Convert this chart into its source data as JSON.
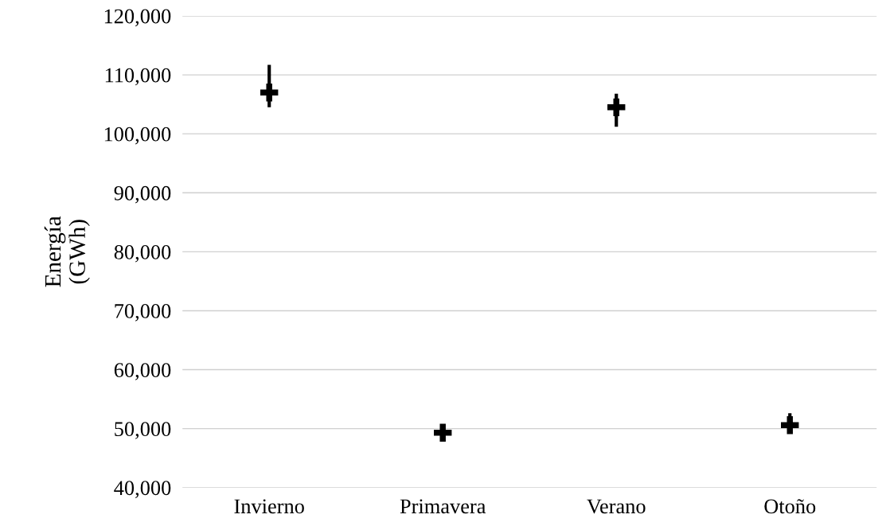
{
  "chart_data": {
    "type": "scatter",
    "ylabel": "Energía\n(GWh)",
    "categories": [
      "Invierno",
      "Primavera",
      "Verano",
      "Otoño"
    ],
    "series": [
      {
        "color": "#000000",
        "values": [
          107000,
          49300,
          104500,
          50600
        ],
        "errors": [
          [
            104500,
            111700
          ],
          [
            48100,
            50400
          ],
          [
            101200,
            106800
          ],
          [
            49300,
            52600
          ]
        ]
      }
    ],
    "ylim": [
      40000,
      120000
    ],
    "yticks": [
      {
        "value": 40000,
        "label": "40,000"
      },
      {
        "value": 50000,
        "label": "50,000"
      },
      {
        "value": 60000,
        "label": "60,000"
      },
      {
        "value": 70000,
        "label": "70,000"
      },
      {
        "value": 80000,
        "label": "80,000"
      },
      {
        "value": 90000,
        "label": "90,000"
      },
      {
        "value": 100000,
        "label": "100,000"
      },
      {
        "value": 110000,
        "label": "110,000"
      },
      {
        "value": 120000,
        "label": "120,000"
      }
    ],
    "grid": "y",
    "marker": "cross"
  }
}
